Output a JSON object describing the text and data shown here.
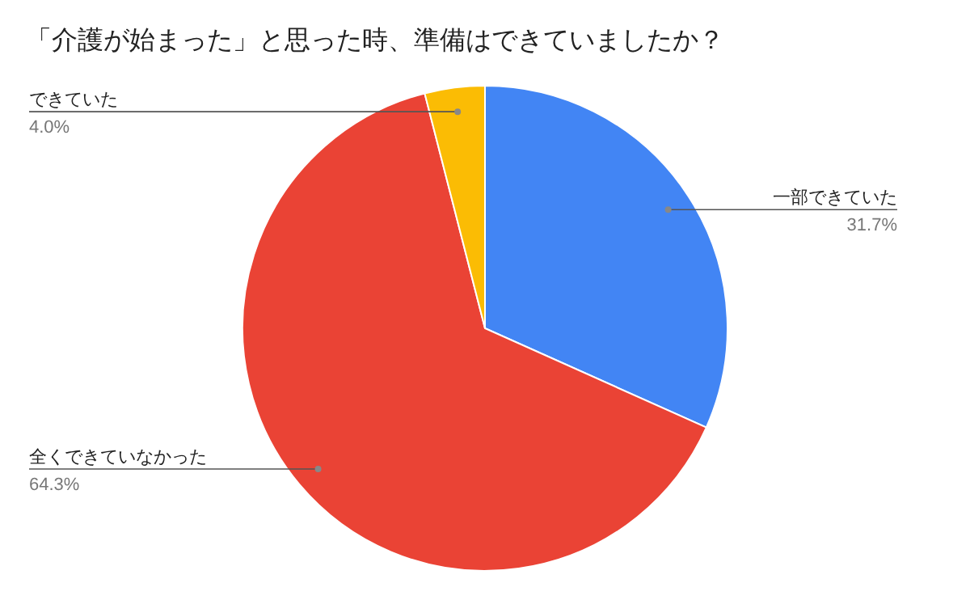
{
  "chart_data": {
    "type": "pie",
    "title": "「介護が始まった」と思った時、準備はできていましたか？",
    "categories": [
      "一部できていた",
      "全くできていなかった",
      "できていた"
    ],
    "values": [
      31.7,
      64.3,
      4.0
    ],
    "colors": [
      "#4285f4",
      "#ea4335",
      "#fbbc04"
    ],
    "value_labels": [
      "31.7%",
      "64.3%",
      "4.0%"
    ]
  }
}
